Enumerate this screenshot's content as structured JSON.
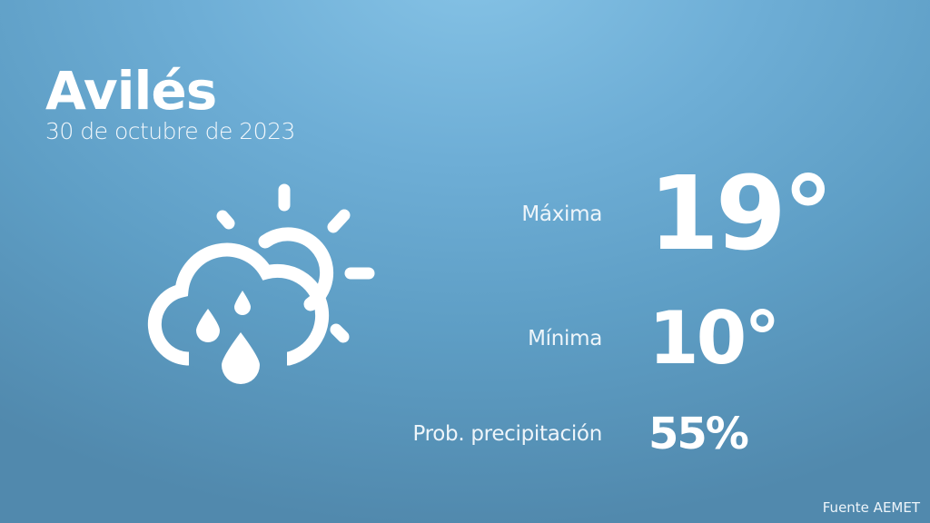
{
  "header": {
    "city": "Avilés",
    "date": "30 de octubre de 2023"
  },
  "weather": {
    "icon": "cloud-sun-rain-icon",
    "max_label": "Máxima",
    "max_value": "19°",
    "min_label": "Mínima",
    "min_value": "10°",
    "precip_label": "Prob. precipitación",
    "precip_value": "55%"
  },
  "footer": {
    "source": "Fuente AEMET"
  },
  "colors": {
    "background_top": "#86c3e6",
    "background_bottom": "#5189ad",
    "text": "#ffffff"
  }
}
